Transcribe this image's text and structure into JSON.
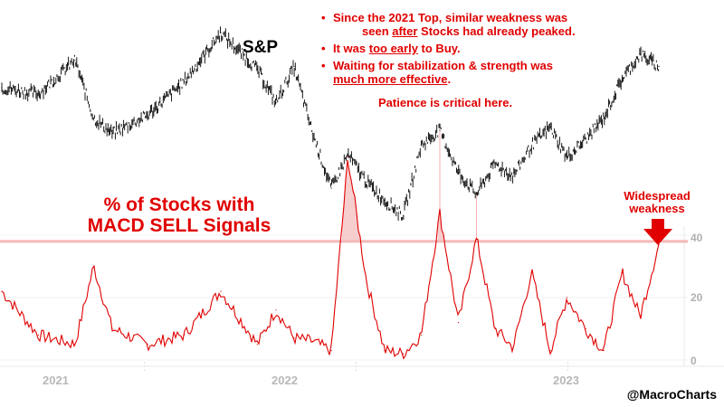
{
  "chart_data": [
    {
      "type": "line",
      "style": "ohlc-bars",
      "title": "S&P",
      "color": "#000000",
      "x": [
        "2020-08",
        "2020-10",
        "2020-12",
        "2021-01",
        "2021-02",
        "2021-04",
        "2021-06",
        "2021-08",
        "2021-10",
        "2021-11",
        "2021-12",
        "2022-01",
        "2022-02",
        "2022-03",
        "2022-04",
        "2022-05",
        "2022-06",
        "2022-07",
        "2022-08",
        "2022-09",
        "2022-10",
        "2022-11",
        "2022-12",
        "2023-01",
        "2023-02",
        "2023-03",
        "2023-04",
        "2023-05",
        "2023-06",
        "2023-07",
        "2023-08"
      ],
      "close": [
        77,
        75,
        86,
        67,
        62,
        68,
        79,
        95,
        83,
        72,
        84,
        62,
        44,
        55,
        46,
        40,
        35,
        58,
        63,
        49,
        42,
        52,
        48,
        58,
        64,
        54,
        60,
        67,
        80,
        88,
        84
      ]
    },
    {
      "type": "line",
      "title": "% of Stocks with MACD SELL Signals",
      "color": "#e00000",
      "threshold": 38,
      "threshold_color": "#f4b8b8",
      "ylim": [
        0,
        45
      ],
      "y_ticks": [
        "0",
        "20",
        "40"
      ],
      "x_ticks": [
        "2021",
        "2022",
        "2023"
      ],
      "x": [
        "2020-08",
        "2020-10",
        "2020-12",
        "2021-01",
        "2021-02",
        "2021-04",
        "2021-06",
        "2021-08",
        "2021-10",
        "2021-11",
        "2021-12",
        "2022-01",
        "2022-02",
        "2022-03",
        "2022-04",
        "2022-05",
        "2022-06",
        "2022-07",
        "2022-08",
        "2022-09",
        "2022-10",
        "2022-11",
        "2022-12",
        "2023-01",
        "2023-02",
        "2023-03",
        "2023-04",
        "2023-05",
        "2023-06",
        "2023-07",
        "2023-08"
      ],
      "values": [
        22,
        8,
        5,
        30,
        10,
        5,
        8,
        22,
        5,
        16,
        7,
        6,
        3,
        65,
        25,
        3,
        2,
        8,
        47,
        12,
        39,
        10,
        4,
        28,
        3,
        20,
        10,
        3,
        28,
        14,
        37
      ]
    }
  ],
  "annotations": {
    "sp_label": "S&P",
    "big_title_line1": "% of Stocks with",
    "big_title_line2": "MACD SELL Signals",
    "bullet": "•",
    "note1_a": "Since the 2021 Top, similar weakness was",
    "note1_b": "seen ",
    "note1_b_u": "after",
    "note1_b_end": " Stocks had already peaked.",
    "note2_a": "It was ",
    "note2_u": "too early",
    "note2_b": " to Buy.",
    "note3_a": "Waiting for stabilization & strength was",
    "note3_u": "much more effective",
    "note3_b": ".",
    "patience": "Patience is critical here.",
    "widespread_1": "Widespread",
    "widespread_2": "weakness",
    "credit": "@MacroCharts"
  }
}
